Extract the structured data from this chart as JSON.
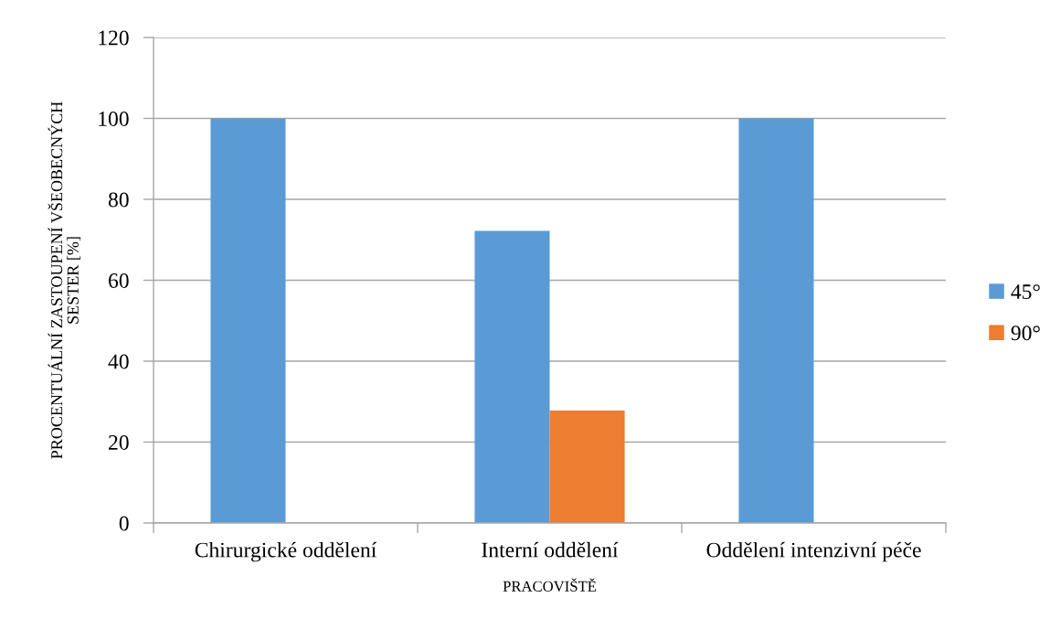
{
  "chart_data": {
    "type": "bar",
    "xlabel": "PRACOVIŠTĚ",
    "ylabel": "PROCENTUÁLNÍ ZASTOUPENÍ VŠEOBECNÝCH\nSESTER [%]",
    "categories": [
      "Chirurgické oddělení",
      "Interní oddělení",
      "Oddělení intenzivní péče"
    ],
    "series": [
      {
        "name": "45°",
        "color": "#5b9bd5",
        "values": [
          100,
          72.2,
          100
        ]
      },
      {
        "name": "90°",
        "color": "#ed7d31",
        "values": [
          null,
          27.8,
          null
        ]
      }
    ],
    "ylim": [
      0,
      120
    ],
    "yticks": [
      0,
      20,
      40,
      60,
      80,
      100,
      120
    ],
    "grid": "y",
    "legend": "right"
  }
}
